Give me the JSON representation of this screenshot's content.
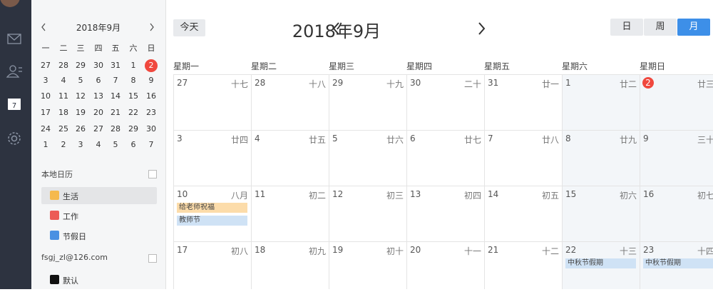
{
  "sidebar": {
    "calendar_icon": "7"
  },
  "mini_calendar": {
    "title": "2018年9月",
    "weekdays": [
      "一",
      "二",
      "三",
      "四",
      "五",
      "六",
      "日"
    ],
    "weeks": [
      [
        "27",
        "28",
        "29",
        "30",
        "31",
        "1",
        {
          "label": "2",
          "today": true
        }
      ],
      [
        "3",
        "4",
        "5",
        "6",
        "7",
        "8",
        "9"
      ],
      [
        "10",
        "11",
        "12",
        "13",
        "14",
        "15",
        "16"
      ],
      [
        "17",
        "18",
        "19",
        "20",
        "21",
        "22",
        "23"
      ],
      [
        "24",
        "25",
        "26",
        "27",
        "28",
        "29",
        "30"
      ],
      [
        "1",
        "2",
        "3",
        "4",
        "5",
        "6",
        "7"
      ]
    ]
  },
  "calendars": [
    {
      "title": "本地日历",
      "items": [
        {
          "label": "生活",
          "color": "#f5b94d",
          "selected": true
        },
        {
          "label": "工作",
          "color": "#ec5b56"
        },
        {
          "label": "节假日",
          "color": "#4a90e2"
        }
      ]
    },
    {
      "title": "fsgj_zl@126.com",
      "items": [
        {
          "label": "默认",
          "color": "#111111"
        }
      ]
    }
  ],
  "toolbar": {
    "today": "今天",
    "title": "2018年9月",
    "views": [
      {
        "label": "日"
      },
      {
        "label": "周"
      },
      {
        "label": "月",
        "active": true
      }
    ]
  },
  "month": {
    "weekdays": [
      "星期一",
      "星期二",
      "星期三",
      "星期四",
      "星期五",
      "星期六",
      "星期日"
    ],
    "weeks": [
      [
        {
          "day": "27",
          "lunar": "十七"
        },
        {
          "day": "28",
          "lunar": "十八"
        },
        {
          "day": "29",
          "lunar": "十九"
        },
        {
          "day": "30",
          "lunar": "二十"
        },
        {
          "day": "31",
          "lunar": "廿一"
        },
        {
          "day": "1",
          "lunar": "廿二"
        },
        {
          "day": "2",
          "lunar": "廿三",
          "today": true
        }
      ],
      [
        {
          "day": "3",
          "lunar": "廿四"
        },
        {
          "day": "4",
          "lunar": "廿五"
        },
        {
          "day": "5",
          "lunar": "廿六"
        },
        {
          "day": "6",
          "lunar": "廿七"
        },
        {
          "day": "7",
          "lunar": "廿八"
        },
        {
          "day": "8",
          "lunar": "廿九"
        },
        {
          "day": "9",
          "lunar": "三十"
        }
      ],
      [
        {
          "day": "10",
          "lunar": "八月",
          "events": [
            {
              "title": "给老师祝福",
              "color": "#fcdcaa"
            },
            {
              "title": "教师节",
              "color": "#cfe2f5"
            }
          ]
        },
        {
          "day": "11",
          "lunar": "初二"
        },
        {
          "day": "12",
          "lunar": "初三"
        },
        {
          "day": "13",
          "lunar": "初四"
        },
        {
          "day": "14",
          "lunar": "初五"
        },
        {
          "day": "15",
          "lunar": "初六"
        },
        {
          "day": "16",
          "lunar": "初七"
        }
      ],
      [
        {
          "day": "17",
          "lunar": "初八"
        },
        {
          "day": "18",
          "lunar": "初九"
        },
        {
          "day": "19",
          "lunar": "初十"
        },
        {
          "day": "20",
          "lunar": "十一"
        },
        {
          "day": "21",
          "lunar": "十二"
        },
        {
          "day": "22",
          "lunar": "十三",
          "events": [
            {
              "title": "中秋节假期",
              "color": "#cfe2f5"
            }
          ]
        },
        {
          "day": "23",
          "lunar": "十四",
          "events": [
            {
              "title": "中秋节假期",
              "color": "#cfe2f5"
            }
          ]
        }
      ]
    ]
  }
}
